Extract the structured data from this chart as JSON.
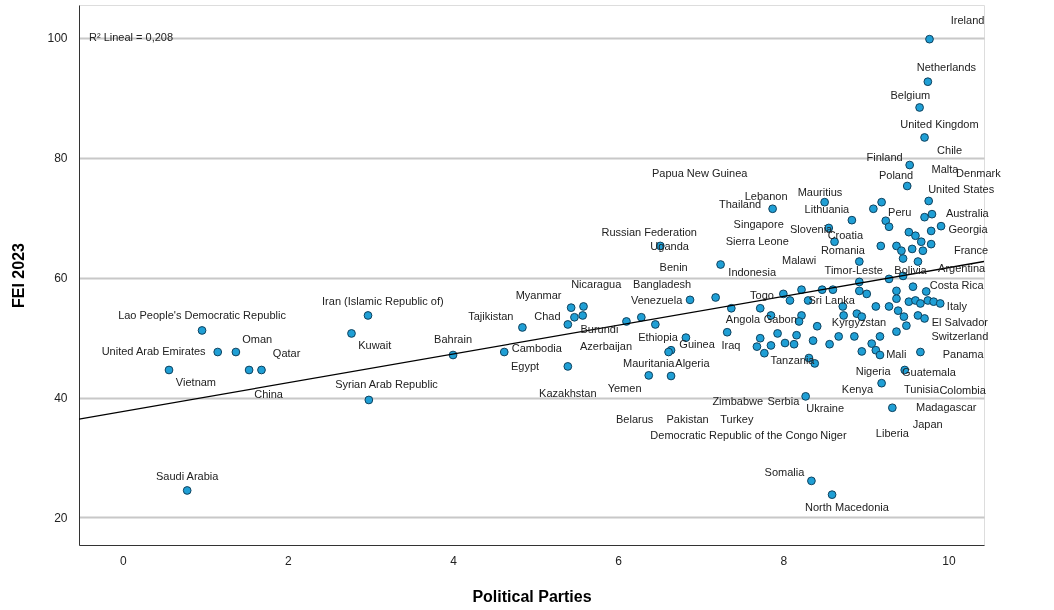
{
  "chart_data": {
    "type": "scatter",
    "xlabel": "Political Parties",
    "ylabel": "FEI 2023",
    "xlim": [
      -0.53,
      10.43
    ],
    "ylim": [
      15.4,
      105.5
    ],
    "xticks": [
      0,
      2,
      4,
      6,
      8,
      10
    ],
    "yticks": [
      20,
      40,
      60,
      80,
      100
    ],
    "grid": "y",
    "marker": "circle",
    "series": [
      {
        "color": "#1f9fd5",
        "x": [
          0.96,
          1.15,
          1.37,
          0.56,
          1.53,
          1.68,
          2.77,
          2.97,
          2.98,
          4.0,
          0.78,
          4.84,
          4.62,
          5.39,
          5.43,
          5.58,
          5.47,
          5.57,
          5.39,
          6.1,
          6.28,
          6.45,
          6.87,
          7.18,
          7.24,
          6.51,
          7.37,
          6.82,
          6.64,
          6.61,
          6.37,
          6.64,
          7.32,
          8.55,
          8.62,
          8.92,
          9.18,
          9.37,
          9.43,
          9.52,
          9.6,
          9.67,
          9.79,
          9.56,
          9.69,
          9.63,
          9.79,
          9.91,
          9.45,
          9.28,
          9.45,
          9.57,
          8.92,
          8.92,
          9.01,
          8.0,
          8.08,
          8.22,
          8.3,
          8.47,
          8.6,
          7.72,
          7.85,
          8.22,
          8.19,
          8.41,
          7.93,
          8.16,
          7.72,
          7.85,
          7.68,
          7.77,
          8.02,
          8.13,
          8.36,
          8.56,
          8.67,
          8.38,
          8.31,
          8.27,
          8.72,
          8.73,
          8.89,
          8.95,
          8.86,
          9.12,
          9.28,
          9.17,
          9.07,
          9.12,
          9.17,
          8.95,
          9.37,
          9.37,
          9.39,
          9.46,
          9.49,
          9.37,
          9.52,
          9.6,
          9.66,
          9.73,
          9.75,
          9.82,
          9.9,
          9.63,
          9.71,
          9.66,
          9.47,
          9.19,
          9.32,
          9.77,
          9.75,
          9.65,
          9.71,
          9.53,
          9.5,
          9.76,
          8.5,
          7.87,
          9.09,
          9.19,
          8.83,
          9.24,
          9.28,
          9.71,
          9.8,
          8.34,
          8.59
        ],
        "values": [
          51.2,
          47.6,
          47.6,
          44.6,
          44.6,
          44.6,
          50.7,
          53.7,
          39.6,
          47.1,
          24.5,
          51.7,
          47.6,
          45.2,
          55.0,
          55.2,
          53.4,
          53.7,
          52.2,
          52.7,
          53.4,
          52.2,
          56.3,
          56.7,
          62.2,
          65.3,
          54.9,
          50.0,
          47.9,
          47.6,
          43.7,
          43.6,
          50.9,
          68.3,
          66.0,
          62.7,
          65.3,
          65.3,
          64.5,
          67.6,
          67.0,
          66.0,
          65.6,
          64.8,
          64.5,
          62.7,
          67.8,
          68.6,
          63.2,
          59.8,
          60.3,
          58.5,
          59.3,
          57.8,
          57.3,
          57.3,
          56.2,
          58.0,
          56.2,
          58.0,
          58.0,
          54.9,
          53.7,
          53.7,
          52.7,
          51.9,
          50.7,
          50.4,
          49.9,
          48.7,
          48.5,
          47.4,
          49.1,
          48.9,
          49.5,
          48.9,
          50.2,
          45.7,
          46.6,
          40.2,
          55.2,
          53.7,
          54.0,
          53.5,
          50.2,
          55.2,
          55.2,
          50.2,
          49.0,
          47.9,
          47.1,
          47.7,
          57.8,
          56.5,
          54.5,
          53.5,
          52.0,
          51.0,
          56.0,
          56.2,
          55.7,
          57.7,
          56.2,
          56.0,
          55.7,
          53.7,
          53.2,
          47.6,
          44.6,
          42.4,
          38.3,
          99.8,
          92.7,
          88.4,
          83.4,
          78.8,
          75.3,
          72.8,
          72.6,
          71.5,
          71.5,
          72.6,
          69.6,
          69.5,
          68.5,
          70.1,
          70.6,
          26.1,
          23.8
        ]
      },
      {
        "type": "line",
        "marker": "none",
        "color": "#000000",
        "x": [
          -0.53,
          10.43
        ],
        "values": [
          36.4,
          62.7
        ]
      }
    ],
    "annotations": [
      "R² Lineal = 0,208",
      {
        "text": "Ireland",
        "x": 9.77,
        "y": 99.8
      },
      {
        "text": "Netherlands",
        "x": 9.75,
        "y": 92.7
      },
      {
        "text": "Belgium",
        "x": 9.65,
        "y": 88.4
      },
      {
        "text": "United Kingdom",
        "x": 9.71,
        "y": 83.4
      },
      {
        "text": "Chile",
        "x": 9.53,
        "y": 78.8
      },
      {
        "text": "Finland",
        "x": 9.53,
        "y": 78.8
      },
      {
        "text": "Malta",
        "x": 9.53,
        "y": 78.8
      },
      "Denmark",
      "Papua New Guinea",
      {
        "text": "Poland",
        "x": 9.5,
        "y": 75.3
      },
      {
        "text": "United States",
        "x": 9.76,
        "y": 72.8
      },
      {
        "text": "Mauritius",
        "x": 8.5,
        "y": 72.6
      },
      {
        "text": "Lebanon",
        "x": 7.87,
        "y": 71.5
      },
      {
        "text": "Thailand",
        "x": 7.87,
        "y": 71.5
      },
      {
        "text": "Lithuania",
        "x": 9.09,
        "y": 71.5
      },
      {
        "text": "Peru",
        "x": 9.24,
        "y": 69.5
      },
      {
        "text": "Australia",
        "x": 9.8,
        "y": 70.6
      },
      {
        "text": "Singapore",
        "x": 7.87,
        "y": 71.5
      },
      {
        "text": "Slovenia",
        "x": 8.55,
        "y": 68.3
      },
      {
        "text": "Georgia",
        "x": 9.91,
        "y": 68.6
      },
      {
        "text": "Russian Federation",
        "x": 6.51,
        "y": 65.3
      },
      {
        "text": "Croatia",
        "x": 8.83,
        "y": 69.6
      },
      "Sierra Leone",
      {
        "text": "Uganda",
        "x": 6.51,
        "y": 65.3
      },
      {
        "text": "Romania",
        "x": 8.62,
        "y": 66.0
      },
      {
        "text": "France",
        "x": 9.79,
        "y": 65.6
      },
      "Malawi",
      "Benin",
      {
        "text": "Timor-Leste",
        "x": 8.92,
        "y": 62.7
      },
      {
        "text": "Bolivia",
        "x": 9.45,
        "y": 60.3
      },
      {
        "text": "Argentina",
        "x": 9.63,
        "y": 62.7
      },
      {
        "text": "Indonesia",
        "x": 7.24,
        "y": 62.2
      },
      {
        "text": "Nicaragua",
        "x": 5.43,
        "y": 55.0
      },
      {
        "text": "Bangladesh",
        "x": 6.87,
        "y": 56.3
      },
      {
        "text": "Costa Rica",
        "x": 9.57,
        "y": 58.5
      },
      {
        "text": "Myanmar",
        "x": 5.43,
        "y": 55.0
      },
      {
        "text": "Togo",
        "x": 8.0,
        "y": 57.3
      },
      {
        "text": "Venezuela",
        "x": 6.87,
        "y": 56.3
      },
      {
        "text": "Sri Lanka",
        "x": 8.72,
        "y": 55.2
      },
      {
        "text": "Italy",
        "x": 9.9,
        "y": 55.7
      },
      {
        "text": "Iran (Islamic Republic of)",
        "x": 2.97,
        "y": 53.7
      },
      {
        "text": "Lao People's Democratic Republic",
        "x": 0.96,
        "y": 51.2
      },
      {
        "text": "Tajikistan",
        "x": 4.84,
        "y": 51.7
      },
      {
        "text": "Chad",
        "x": 5.39,
        "y": 52.2
      },
      {
        "text": "Angola",
        "x": 7.32,
        "y": 50.9
      },
      {
        "text": "Gabon",
        "x": 7.85,
        "y": 53.7
      },
      {
        "text": "Kyrgyzstan",
        "x": 8.95,
        "y": 53.5
      },
      {
        "text": "El Salvador",
        "x": 9.71,
        "y": 53.2
      },
      {
        "text": "Burundi",
        "x": 5.39,
        "y": 52.2
      },
      {
        "text": "Ethiopia",
        "x": 6.82,
        "y": 50.0
      },
      {
        "text": "Switzerland",
        "x": 9.71,
        "y": 53.2
      },
      {
        "text": "Oman",
        "x": 1.37,
        "y": 47.6
      },
      {
        "text": "Bahrain",
        "x": 4.0,
        "y": 47.1
      },
      {
        "text": "Guinea",
        "x": 6.64,
        "y": 47.9
      },
      {
        "text": "Iraq",
        "x": 7.68,
        "y": 48.5
      },
      {
        "text": "Kuwait",
        "x": 2.77,
        "y": 50.7
      },
      {
        "text": "Azerbaijan",
        "x": 6.1,
        "y": 52.7
      },
      {
        "text": "Cambodia",
        "x": 4.62,
        "y": 47.6
      },
      {
        "text": "United Arab Emirates",
        "x": 1.15,
        "y": 47.6
      },
      {
        "text": "Qatar",
        "x": 1.68,
        "y": 44.6
      },
      {
        "text": "Mali",
        "x": 9.66,
        "y": 47.6
      },
      {
        "text": "Panama",
        "x": 9.66,
        "y": 47.6
      },
      {
        "text": "Tanzania",
        "x": 8.38,
        "y": 45.7
      },
      {
        "text": "Mauritania",
        "x": 6.37,
        "y": 43.7
      },
      {
        "text": "Algeria",
        "x": 6.64,
        "y": 43.6
      },
      {
        "text": "Egypt",
        "x": 5.39,
        "y": 45.2
      },
      {
        "text": "Nigeria",
        "x": 9.47,
        "y": 44.6
      },
      {
        "text": "Guatemala",
        "x": 9.47,
        "y": 44.6
      },
      {
        "text": "Vietnam",
        "x": 0.56,
        "y": 44.6
      },
      {
        "text": "Syrian Arab Republic",
        "x": 2.98,
        "y": 39.6
      },
      {
        "text": "Yemen",
        "x": 6.37,
        "y": 43.7
      },
      {
        "text": "Kenya",
        "x": 9.19,
        "y": 42.4
      },
      {
        "text": "Tunisia",
        "x": 9.19,
        "y": 42.4
      },
      "Colombia",
      {
        "text": "Kazakhstan",
        "x": 5.39,
        "y": 45.2
      },
      {
        "text": "China",
        "x": 1.53,
        "y": 44.6
      },
      "Zimbabwe",
      {
        "text": "Serbia",
        "x": 8.27,
        "y": 40.2
      },
      {
        "text": "Ukraine",
        "x": 8.27,
        "y": 40.2
      },
      {
        "text": "Madagascar",
        "x": 9.32,
        "y": 38.3
      },
      "Belarus",
      "Pakistan",
      "Turkey",
      {
        "text": "Japan",
        "x": 9.32,
        "y": 38.3
      },
      {
        "text": "Liberia",
        "x": 9.32,
        "y": 38.3
      },
      {
        "text": "Democratic Republic of the Congo",
        "x": 8.27,
        "y": 40.2
      },
      "Niger",
      {
        "text": "Somalia",
        "x": 8.34,
        "y": 26.1
      },
      {
        "text": "Saudi Arabia",
        "x": 0.78,
        "y": 24.5
      },
      {
        "text": "North Macedonia",
        "x": 8.59,
        "y": 23.8
      }
    ]
  }
}
